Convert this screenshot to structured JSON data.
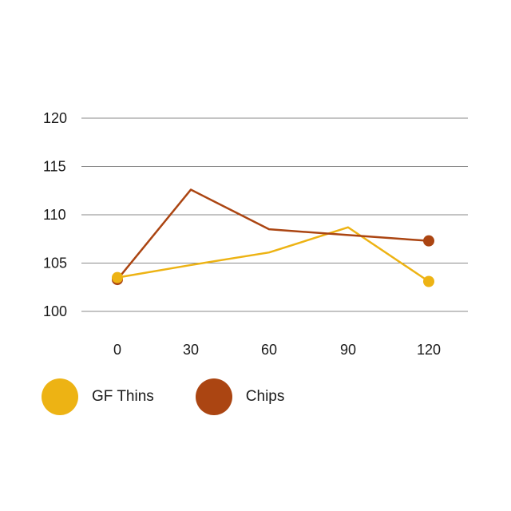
{
  "chart_data": {
    "type": "line",
    "x": [
      0,
      30,
      60,
      90,
      120
    ],
    "x_tick_labels": [
      "0",
      "30",
      "60",
      "90",
      "120"
    ],
    "y_ticks": [
      100,
      105,
      110,
      115,
      120
    ],
    "y_tick_labels": [
      "100",
      "105",
      "110",
      "115",
      "120"
    ],
    "ylim": [
      100,
      120
    ],
    "grid": "horizontal",
    "legend_position": "bottom-left",
    "series": [
      {
        "name": "GF Thins",
        "color": "#EDB314",
        "values": [
          103.5,
          104.8,
          106.1,
          108.7,
          103.1
        ]
      },
      {
        "name": "Chips",
        "color": "#AB4512",
        "values": [
          103.3,
          112.6,
          108.5,
          107.9,
          107.3
        ]
      }
    ]
  }
}
